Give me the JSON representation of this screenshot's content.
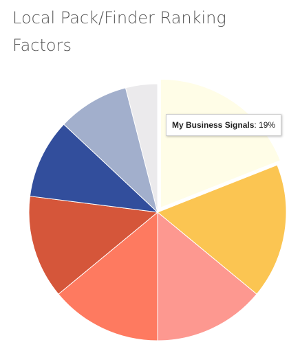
{
  "title": "Local Pack/Finder Ranking Factors",
  "chart_data": {
    "type": "pie",
    "title": "Local Pack/Finder Ranking Factors",
    "categories": [
      "My Business Signals",
      "",
      "",
      "",
      "",
      "",
      "",
      ""
    ],
    "values": [
      19,
      17,
      14,
      14,
      13,
      10,
      9,
      4
    ],
    "colors": [
      "#fffde7",
      "#fbc552",
      "#fd9890",
      "#fe7a60",
      "#d5563a",
      "#324e9c",
      "#a2afcc",
      "#ebeaec"
    ],
    "legend": "none"
  },
  "tooltip": {
    "label": "My Business Signals",
    "value_text": "19%"
  }
}
